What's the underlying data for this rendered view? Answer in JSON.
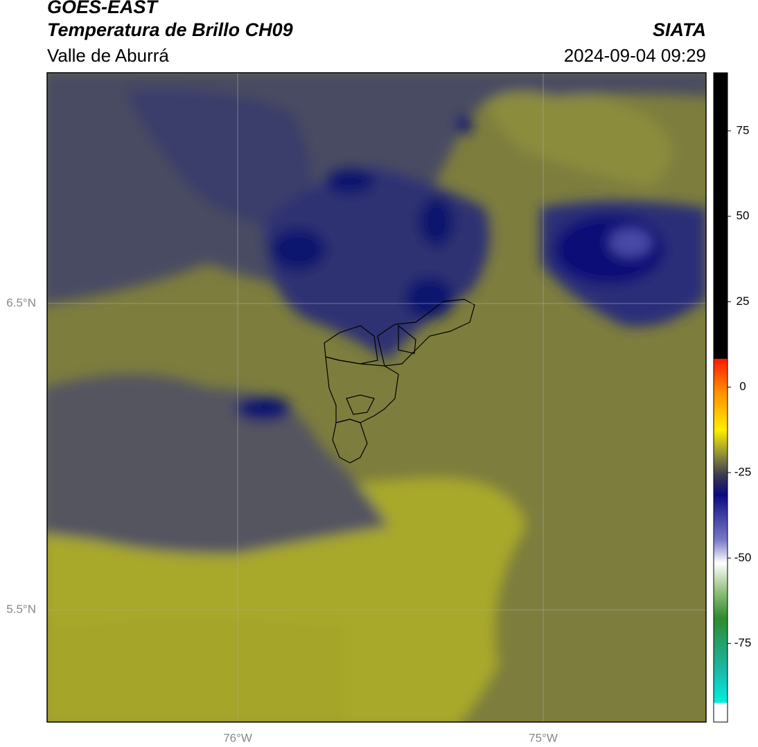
{
  "header": {
    "title": "GOES-EAST",
    "subtitle": "Temperatura de Brillo CH09",
    "region": "Valle de Aburrá",
    "source": "SIATA",
    "datetime": "2024-09-04 09:29"
  },
  "map": {
    "xlim": [
      -76.624,
      -74.467
    ],
    "ylim": [
      5.134,
      7.253
    ],
    "xticks": [
      {
        "value": -76,
        "label": "76°W"
      },
      {
        "value": -75,
        "label": "75°W"
      }
    ],
    "yticks": [
      {
        "value": 6.5,
        "label": "6.5°N"
      },
      {
        "value": 5.5,
        "label": "5.5°N"
      }
    ],
    "grid": true
  },
  "colorbar": {
    "lim": [
      -98,
      92
    ],
    "ticks": [
      75,
      50,
      25,
      0,
      -25,
      -50,
      -75
    ]
  }
}
